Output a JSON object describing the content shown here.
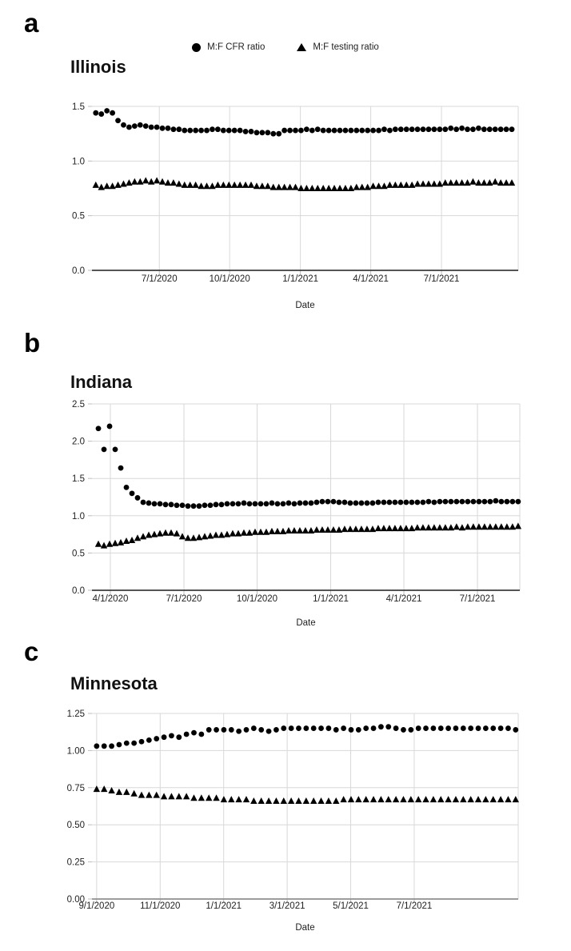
{
  "colors": {
    "marker": "#000000",
    "grid": "#d8d8d8",
    "tickmark": "#bdbdbd",
    "axis_dark": "#3d3d3d",
    "axis_light": "#8f8f8f",
    "text": "#1f1f1f"
  },
  "legend": {
    "items": [
      {
        "label": "M:F CFR ratio",
        "marker": "circle"
      },
      {
        "label": "M:F testing ratio",
        "marker": "triangle"
      }
    ]
  },
  "chart_data": [
    {
      "type": "scatter",
      "panel_label": "a",
      "title": "Illinois",
      "xlabel": "Date",
      "ylim": [
        0,
        1.5
      ],
      "grid": true,
      "legend_position": "top-center",
      "y_ticks": [
        {
          "label": "0.0",
          "v": 0
        },
        {
          "label": "0.5",
          "v": 0.5
        },
        {
          "label": "1.0",
          "v": 1.0
        },
        {
          "label": "1.5",
          "v": 1.5
        }
      ],
      "x_ticks": [
        {
          "label": "7/1/2020",
          "pos": 0.158
        },
        {
          "label": "10/1/2020",
          "pos": 0.323
        },
        {
          "label": "1/1/2021",
          "pos": 0.489
        },
        {
          "label": "4/1/2021",
          "pos": 0.654
        },
        {
          "label": "7/1/2021",
          "pos": 0.82
        }
      ],
      "data_span": [
        0.009,
        0.985
      ],
      "series": [
        {
          "name": "M:F CFR ratio",
          "marker": "circle",
          "values": [
            1.44,
            1.43,
            1.46,
            1.44,
            1.37,
            1.33,
            1.31,
            1.32,
            1.33,
            1.32,
            1.31,
            1.31,
            1.3,
            1.3,
            1.29,
            1.29,
            1.28,
            1.28,
            1.28,
            1.28,
            1.28,
            1.29,
            1.29,
            1.28,
            1.28,
            1.28,
            1.28,
            1.27,
            1.27,
            1.26,
            1.26,
            1.26,
            1.25,
            1.25,
            1.28,
            1.28,
            1.28,
            1.28,
            1.29,
            1.28,
            1.29,
            1.28,
            1.28,
            1.28,
            1.28,
            1.28,
            1.28,
            1.28,
            1.28,
            1.28,
            1.28,
            1.28,
            1.29,
            1.28,
            1.29,
            1.29,
            1.29,
            1.29,
            1.29,
            1.29,
            1.29,
            1.29,
            1.29,
            1.29,
            1.3,
            1.29,
            1.3,
            1.29,
            1.29,
            1.3,
            1.29,
            1.29,
            1.29,
            1.29,
            1.29,
            1.29
          ]
        },
        {
          "name": "M:F testing ratio",
          "marker": "triangle",
          "values": [
            0.78,
            0.76,
            0.77,
            0.77,
            0.78,
            0.79,
            0.8,
            0.81,
            0.81,
            0.82,
            0.81,
            0.82,
            0.81,
            0.8,
            0.8,
            0.79,
            0.78,
            0.78,
            0.78,
            0.77,
            0.77,
            0.77,
            0.78,
            0.78,
            0.78,
            0.78,
            0.78,
            0.78,
            0.78,
            0.77,
            0.77,
            0.77,
            0.76,
            0.76,
            0.76,
            0.76,
            0.76,
            0.75,
            0.75,
            0.75,
            0.75,
            0.75,
            0.75,
            0.75,
            0.75,
            0.75,
            0.75,
            0.76,
            0.76,
            0.76,
            0.77,
            0.77,
            0.77,
            0.78,
            0.78,
            0.78,
            0.78,
            0.78,
            0.79,
            0.79,
            0.79,
            0.79,
            0.79,
            0.8,
            0.8,
            0.8,
            0.8,
            0.8,
            0.81,
            0.8,
            0.8,
            0.8,
            0.81,
            0.8,
            0.8,
            0.8
          ]
        }
      ]
    },
    {
      "type": "scatter",
      "panel_label": "b",
      "title": "Indiana",
      "xlabel": "Date",
      "ylim": [
        0,
        2.5
      ],
      "grid": true,
      "y_ticks": [
        {
          "label": "0.0",
          "v": 0
        },
        {
          "label": "0.5",
          "v": 0.5
        },
        {
          "label": "1.0",
          "v": 1.0
        },
        {
          "label": "1.5",
          "v": 1.5
        },
        {
          "label": "2.0",
          "v": 2.0
        },
        {
          "label": "2.5",
          "v": 2.5
        }
      ],
      "x_ticks": [
        {
          "label": "4/1/2020",
          "pos": 0.043
        },
        {
          "label": "7/1/2020",
          "pos": 0.215
        },
        {
          "label": "10/1/2020",
          "pos": 0.386
        },
        {
          "label": "1/1/2021",
          "pos": 0.558
        },
        {
          "label": "4/1/2021",
          "pos": 0.729
        },
        {
          "label": "7/1/2021",
          "pos": 0.901
        }
      ],
      "data_span": [
        0.015,
        0.996
      ],
      "series": [
        {
          "name": "M:F CFR ratio",
          "marker": "circle",
          "values": [
            2.17,
            1.89,
            2.2,
            1.89,
            1.64,
            1.38,
            1.3,
            1.24,
            1.18,
            1.17,
            1.16,
            1.16,
            1.15,
            1.15,
            1.14,
            1.14,
            1.13,
            1.13,
            1.13,
            1.14,
            1.14,
            1.15,
            1.15,
            1.16,
            1.16,
            1.16,
            1.17,
            1.16,
            1.16,
            1.16,
            1.16,
            1.17,
            1.16,
            1.16,
            1.17,
            1.16,
            1.17,
            1.17,
            1.17,
            1.18,
            1.19,
            1.19,
            1.19,
            1.18,
            1.18,
            1.17,
            1.17,
            1.17,
            1.17,
            1.17,
            1.18,
            1.18,
            1.18,
            1.18,
            1.18,
            1.18,
            1.18,
            1.18,
            1.18,
            1.19,
            1.18,
            1.19,
            1.19,
            1.19,
            1.19,
            1.19,
            1.19,
            1.19,
            1.19,
            1.19,
            1.19,
            1.2,
            1.19,
            1.19,
            1.19,
            1.19
          ]
        },
        {
          "name": "M:F testing ratio",
          "marker": "triangle",
          "values": [
            0.62,
            0.6,
            0.62,
            0.63,
            0.64,
            0.66,
            0.67,
            0.7,
            0.72,
            0.74,
            0.75,
            0.76,
            0.77,
            0.77,
            0.76,
            0.72,
            0.7,
            0.7,
            0.71,
            0.72,
            0.73,
            0.74,
            0.74,
            0.75,
            0.76,
            0.76,
            0.77,
            0.77,
            0.78,
            0.78,
            0.78,
            0.79,
            0.79,
            0.79,
            0.8,
            0.8,
            0.8,
            0.8,
            0.8,
            0.81,
            0.81,
            0.81,
            0.81,
            0.81,
            0.82,
            0.82,
            0.82,
            0.82,
            0.82,
            0.82,
            0.83,
            0.83,
            0.83,
            0.83,
            0.83,
            0.83,
            0.83,
            0.84,
            0.84,
            0.84,
            0.84,
            0.84,
            0.84,
            0.84,
            0.85,
            0.84,
            0.85,
            0.85,
            0.85,
            0.85,
            0.85,
            0.85,
            0.85,
            0.85,
            0.85,
            0.86
          ]
        }
      ]
    },
    {
      "type": "scatter",
      "panel_label": "c",
      "title": "Minnesota",
      "xlabel": "Date",
      "ylim": [
        0,
        1.25
      ],
      "grid": true,
      "y_ticks": [
        {
          "label": "0.00",
          "v": 0
        },
        {
          "label": "0.25",
          "v": 0.25
        },
        {
          "label": "0.50",
          "v": 0.5
        },
        {
          "label": "0.75",
          "v": 0.75
        },
        {
          "label": "1.00",
          "v": 1.0
        },
        {
          "label": "1.25",
          "v": 1.25
        }
      ],
      "x_ticks": [
        {
          "label": "9/1/2020",
          "pos": 0.011
        },
        {
          "label": "11/1/2020",
          "pos": 0.16
        },
        {
          "label": "1/1/2021",
          "pos": 0.309
        },
        {
          "label": "3/1/2021",
          "pos": 0.458
        },
        {
          "label": "5/1/2021",
          "pos": 0.607
        },
        {
          "label": "7/1/2021",
          "pos": 0.756
        }
      ],
      "data_span": [
        0.011,
        0.994
      ],
      "series": [
        {
          "name": "M:F CFR ratio",
          "marker": "circle",
          "values": [
            1.03,
            1.03,
            1.03,
            1.04,
            1.05,
            1.05,
            1.06,
            1.07,
            1.08,
            1.09,
            1.1,
            1.09,
            1.11,
            1.12,
            1.11,
            1.14,
            1.14,
            1.14,
            1.14,
            1.13,
            1.14,
            1.15,
            1.14,
            1.13,
            1.14,
            1.15,
            1.15,
            1.15,
            1.15,
            1.15,
            1.15,
            1.15,
            1.14,
            1.15,
            1.14,
            1.14,
            1.15,
            1.15,
            1.16,
            1.16,
            1.15,
            1.14,
            1.14,
            1.15,
            1.15,
            1.15,
            1.15,
            1.15,
            1.15,
            1.15,
            1.15,
            1.15,
            1.15,
            1.15,
            1.15,
            1.15,
            1.14
          ]
        },
        {
          "name": "M:F testing ratio",
          "marker": "triangle",
          "values": [
            0.74,
            0.74,
            0.73,
            0.72,
            0.72,
            0.71,
            0.7,
            0.7,
            0.7,
            0.69,
            0.69,
            0.69,
            0.69,
            0.68,
            0.68,
            0.68,
            0.68,
            0.67,
            0.67,
            0.67,
            0.67,
            0.66,
            0.66,
            0.66,
            0.66,
            0.66,
            0.66,
            0.66,
            0.66,
            0.66,
            0.66,
            0.66,
            0.66,
            0.67,
            0.67,
            0.67,
            0.67,
            0.67,
            0.67,
            0.67,
            0.67,
            0.67,
            0.67,
            0.67,
            0.67,
            0.67,
            0.67,
            0.67,
            0.67,
            0.67,
            0.67,
            0.67,
            0.67,
            0.67,
            0.67,
            0.67,
            0.67
          ]
        }
      ]
    }
  ]
}
